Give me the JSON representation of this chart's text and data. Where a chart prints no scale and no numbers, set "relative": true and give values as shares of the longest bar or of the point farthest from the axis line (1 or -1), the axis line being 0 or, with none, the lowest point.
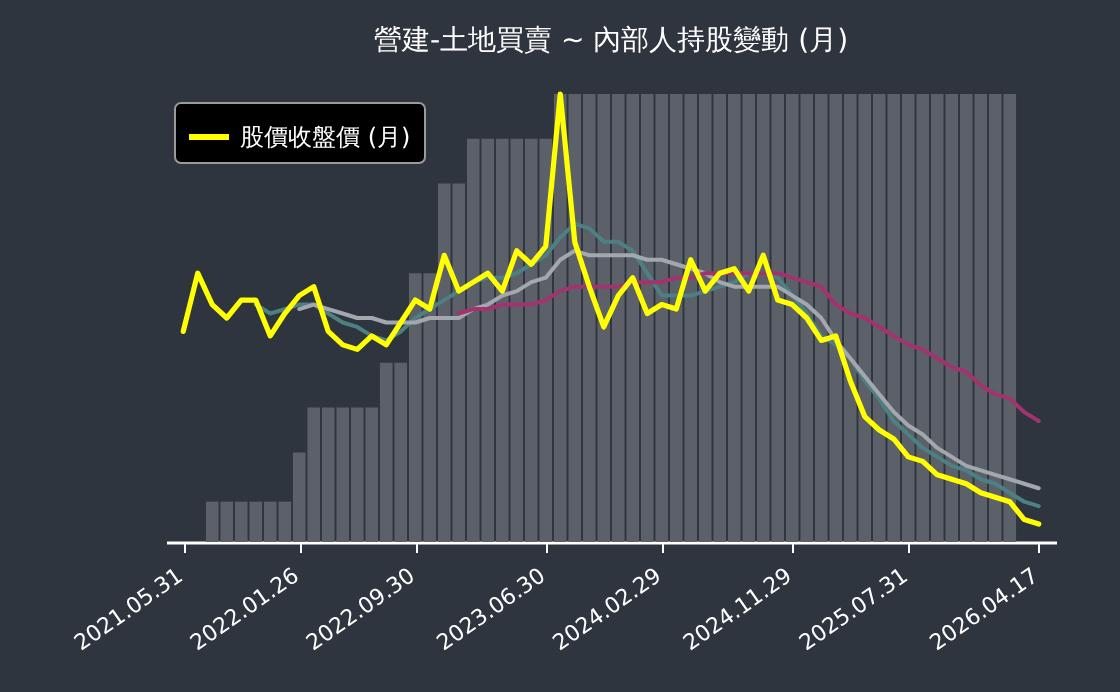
{
  "chart_data": {
    "type": "bar",
    "title": "營建-土地買賣 ~ 內部人持股變動 (月)",
    "relative": true,
    "legend": "top left",
    "categories": [
      "2021.05.31",
      null,
      null,
      null,
      null,
      null,
      null,
      null,
      "2022.01.26",
      null,
      null,
      null,
      null,
      null,
      null,
      null,
      "2022.09.30",
      null,
      null,
      null,
      null,
      null,
      null,
      null,
      null,
      "2023.06.30",
      null,
      null,
      null,
      null,
      null,
      null,
      null,
      "2024.02.29",
      null,
      null,
      null,
      null,
      null,
      null,
      null,
      null,
      "2024.11.29",
      null,
      null,
      null,
      null,
      null,
      null,
      null,
      "2025.07.31",
      null,
      null,
      null,
      null,
      null,
      null,
      null,
      null,
      "2026.04.17"
    ],
    "series": [
      {
        "type": "bar",
        "color": "#5c6169",
        "values": [
          null,
          null,
          0.09,
          0.09,
          0.09,
          0.09,
          0.09,
          0.09,
          0.2,
          0.3,
          0.3,
          0.3,
          0.3,
          0.3,
          0.4,
          0.4,
          0.6,
          0.6,
          0.8,
          0.8,
          0.9,
          0.9,
          0.9,
          0.9,
          0.9,
          0.9,
          1,
          1,
          1,
          1,
          1,
          1,
          1,
          1,
          1,
          1,
          1,
          1,
          1,
          1,
          1,
          1,
          1,
          1,
          1,
          1,
          1,
          1,
          1,
          1,
          1,
          1,
          1,
          1,
          1,
          1,
          1,
          1,
          null,
          null
        ]
      },
      {
        "type": "line",
        "color": "#4d8082",
        "values": [
          null,
          null,
          null,
          null,
          null,
          0.53,
          0.51,
          0.52,
          0.53,
          0.53,
          0.51,
          0.49,
          0.48,
          0.46,
          0.45,
          0.47,
          0.5,
          0.52,
          0.54,
          0.56,
          0.58,
          0.59,
          0.59,
          0.6,
          0.62,
          0.64,
          0.68,
          0.71,
          0.7,
          0.67,
          0.67,
          0.65,
          0.6,
          0.55,
          0.55,
          0.55,
          0.56,
          0.57,
          0.58,
          0.6,
          0.6,
          0.59,
          0.55,
          0.51,
          0.46,
          0.44,
          0.41,
          0.36,
          0.32,
          0.27,
          0.24,
          0.21,
          0.19,
          0.17,
          0.16,
          0.14,
          0.13,
          0.11,
          0.09,
          0.08
        ]
      },
      {
        "type": "line",
        "color": "#a3a7ae",
        "values": [
          null,
          null,
          null,
          null,
          null,
          null,
          null,
          null,
          0.52,
          0.53,
          0.52,
          0.51,
          0.5,
          0.5,
          0.49,
          0.49,
          0.49,
          0.5,
          0.5,
          0.5,
          0.52,
          0.53,
          0.55,
          0.56,
          0.58,
          0.59,
          0.63,
          0.65,
          0.64,
          0.64,
          0.64,
          0.64,
          0.63,
          0.63,
          0.62,
          0.61,
          0.6,
          0.58,
          0.57,
          0.57,
          0.57,
          0.57,
          0.55,
          0.53,
          0.5,
          0.45,
          0.41,
          0.37,
          0.33,
          0.29,
          0.26,
          0.24,
          0.21,
          0.19,
          0.17,
          0.16,
          0.15,
          0.14,
          0.13,
          0.12
        ]
      },
      {
        "type": "line",
        "color": "#a3336e",
        "values": [
          null,
          null,
          null,
          null,
          null,
          null,
          null,
          null,
          null,
          null,
          null,
          null,
          null,
          null,
          null,
          null,
          null,
          null,
          null,
          0.51,
          0.52,
          0.52,
          0.53,
          0.53,
          0.53,
          0.54,
          0.56,
          0.57,
          0.57,
          0.57,
          0.57,
          0.58,
          0.58,
          0.58,
          0.59,
          0.59,
          0.6,
          0.6,
          0.6,
          0.6,
          0.6,
          0.6,
          0.59,
          0.58,
          0.57,
          0.53,
          0.51,
          0.5,
          0.48,
          0.46,
          0.44,
          0.43,
          0.41,
          0.39,
          0.38,
          0.35,
          0.33,
          0.32,
          0.29,
          0.27
        ]
      },
      {
        "type": "line",
        "name": "股價收盤價 (月)",
        "color": "#ffff00",
        "values": [
          0.47,
          0.6,
          0.53,
          0.5,
          0.54,
          0.54,
          0.46,
          0.51,
          0.55,
          0.57,
          0.47,
          0.44,
          0.43,
          0.46,
          0.44,
          0.49,
          0.54,
          0.52,
          0.64,
          0.56,
          0.58,
          0.6,
          0.56,
          0.65,
          0.62,
          0.66,
          1,
          0.67,
          0.57,
          0.48,
          0.55,
          0.59,
          0.51,
          0.53,
          0.52,
          0.63,
          0.56,
          0.6,
          0.61,
          0.56,
          0.64,
          0.54,
          0.53,
          0.5,
          0.45,
          0.46,
          0.36,
          0.28,
          0.25,
          0.23,
          0.19,
          0.18,
          0.15,
          0.14,
          0.13,
          0.11,
          0.1,
          0.09,
          0.05,
          0.04
        ]
      }
    ]
  }
}
